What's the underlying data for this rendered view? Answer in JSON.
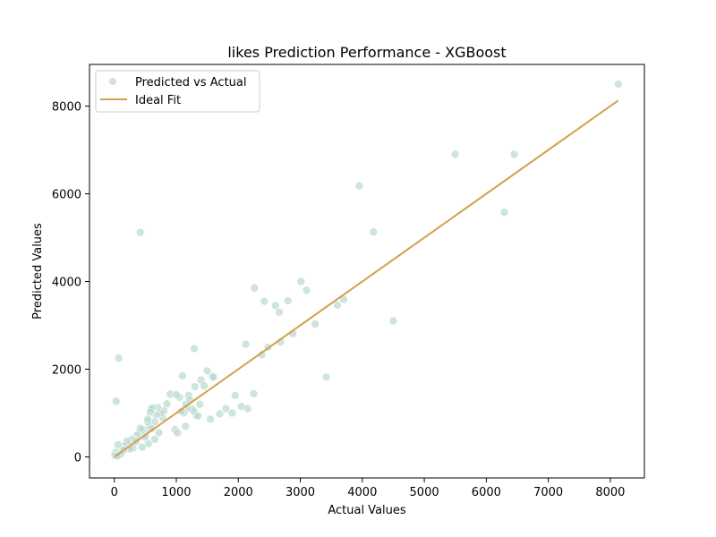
{
  "chart_data": {
    "type": "scatter",
    "title": "likes Prediction Performance - XGBoost",
    "xlabel": "Actual Values",
    "ylabel": "Predicted Values",
    "xlim": [
      -400,
      8550
    ],
    "ylim": [
      -480,
      8950
    ],
    "xticks": [
      0,
      1000,
      2000,
      3000,
      4000,
      5000,
      6000,
      7000,
      8000
    ],
    "yticks": [
      0,
      2000,
      4000,
      6000,
      8000
    ],
    "grid": false,
    "legend_position": "top-left",
    "legend": [
      "Predicted vs Actual",
      "Ideal Fit"
    ],
    "colors": {
      "scatter": "#b9d8cf",
      "ideal_fit": "#d4a04c"
    },
    "ideal_fit": {
      "x": [
        0,
        8130
      ],
      "y": [
        0,
        8130
      ]
    },
    "series": [
      {
        "name": "Predicted vs Actual",
        "x": [
          8130,
          5500,
          6450,
          3950,
          4180,
          6290,
          420,
          2260,
          2420,
          2600,
          2660,
          2800,
          3010,
          3100,
          3240,
          3600,
          3700,
          4500,
          3420,
          2120,
          2380,
          2480,
          2680,
          2880,
          1290,
          1500,
          1580,
          1100,
          900,
          70,
          30,
          1200,
          1250,
          1300,
          1400,
          1450,
          1600,
          1700,
          1800,
          1900,
          1950,
          2050,
          2150,
          2250,
          1550,
          1380,
          1320,
          1280,
          1180,
          1150,
          1050,
          1000,
          980,
          1020,
          1120,
          850,
          800,
          780,
          750,
          700,
          680,
          650,
          620,
          600,
          580,
          560,
          540,
          520,
          500,
          480,
          460,
          440,
          420,
          400,
          380,
          360,
          340,
          320,
          300,
          280,
          260,
          240,
          220,
          200,
          180,
          160,
          140,
          120,
          100,
          80,
          60,
          40,
          20,
          10,
          650,
          720,
          550,
          500,
          450,
          350,
          300,
          250,
          150,
          100,
          50,
          1080,
          1150,
          1220,
          1350,
          600,
          540
        ],
        "y": [
          8500,
          6900,
          6900,
          6180,
          5130,
          5580,
          5120,
          3850,
          3550,
          3450,
          3300,
          3560,
          4000,
          3800,
          3030,
          3460,
          3590,
          3100,
          1820,
          2570,
          2330,
          2500,
          2620,
          2810,
          2470,
          1960,
          1830,
          1850,
          1430,
          2250,
          1270,
          1400,
          1100,
          1600,
          1750,
          1620,
          1820,
          980,
          1100,
          1000,
          1400,
          1150,
          1100,
          1440,
          860,
          1200,
          950,
          1050,
          1100,
          700,
          1360,
          1420,
          620,
          550,
          1000,
          1210,
          1050,
          900,
          1000,
          1120,
          950,
          800,
          1120,
          1100,
          1020,
          700,
          800,
          620,
          550,
          500,
          620,
          580,
          650,
          460,
          520,
          480,
          400,
          380,
          350,
          400,
          300,
          250,
          280,
          360,
          200,
          250,
          170,
          150,
          120,
          100,
          280,
          60,
          100,
          30,
          400,
          550,
          300,
          450,
          220,
          350,
          200,
          180,
          150,
          60,
          20,
          1040,
          1200,
          1300,
          930,
          650,
          860
        ]
      }
    ]
  }
}
